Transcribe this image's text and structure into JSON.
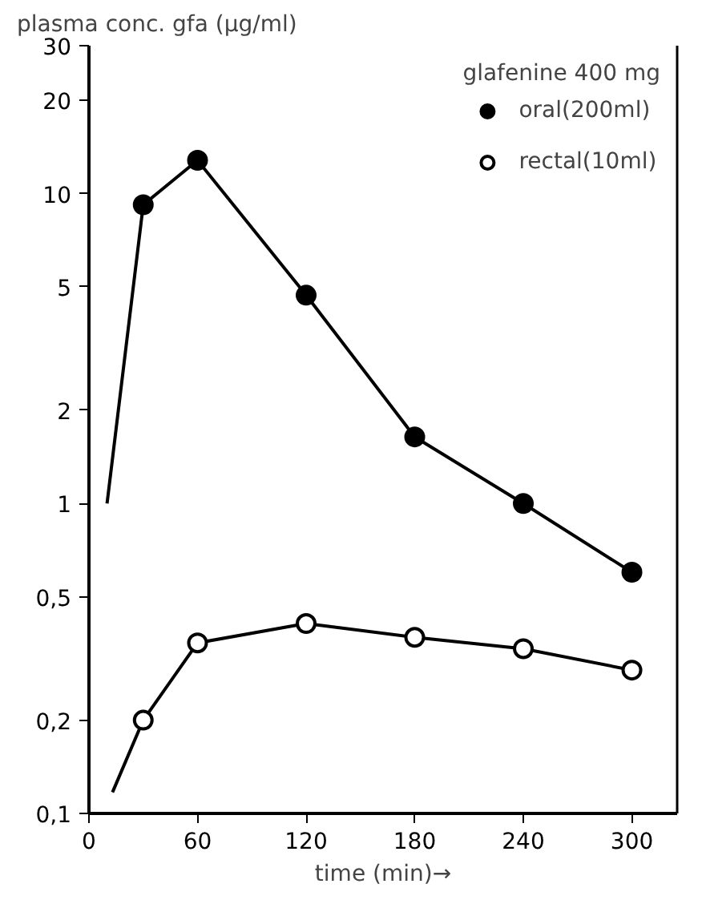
{
  "chart_data": {
    "type": "line",
    "ylabel": "plasma conc. gfa (µg/ml)",
    "xlabel": "time (min)→",
    "legend_title": "glafenine 400 mg",
    "log": "y",
    "grid": false,
    "legend": "top right",
    "xlim": [
      0,
      325
    ],
    "xticks": [
      0,
      60,
      120,
      180,
      240,
      300
    ],
    "ylim": [
      0.1,
      30
    ],
    "yticks": [
      30,
      20,
      10,
      5,
      2,
      1,
      {
        "value": 0.5,
        "label": "0,5"
      },
      {
        "value": 0.2,
        "label": "0,2"
      },
      {
        "value": 0.1,
        "label": "0,1"
      }
    ],
    "series": [
      {
        "marker": "none",
        "color": "#000000",
        "x": [
          10,
          30,
          60,
          120,
          180,
          240,
          300
        ],
        "values": [
          1.0,
          9.2,
          12.8,
          4.7,
          1.64,
          1.0,
          0.6
        ]
      },
      {
        "type": "scatter",
        "name": "oral(200ml)",
        "marker": "circle",
        "color": "#000000",
        "x": [
          30,
          60,
          120,
          180,
          240,
          300
        ],
        "values": [
          9.2,
          12.8,
          4.7,
          1.64,
          1.0,
          0.6
        ]
      },
      {
        "marker": "none",
        "color": "#000000",
        "x": [
          13,
          30,
          60,
          120,
          180,
          240,
          300
        ],
        "values": [
          0.117,
          0.2,
          0.355,
          0.41,
          0.37,
          0.34,
          0.29
        ]
      },
      {
        "type": "scatter",
        "name": "rectal(10ml)",
        "marker": "circle",
        "color": "#ffffff",
        "x": [
          30,
          60,
          120,
          180,
          240,
          300
        ],
        "values": [
          0.2,
          0.355,
          0.41,
          0.37,
          0.34,
          0.29
        ]
      }
    ]
  }
}
